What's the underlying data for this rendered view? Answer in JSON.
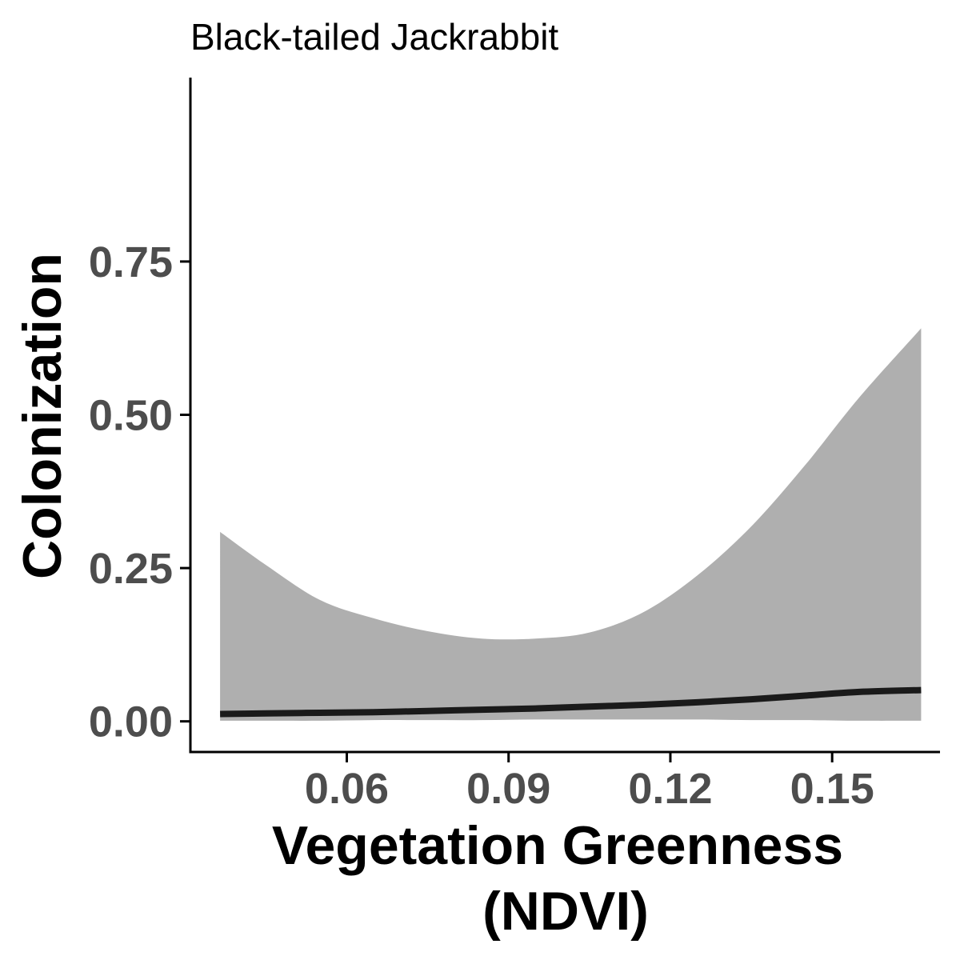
{
  "chart_data": {
    "type": "line",
    "title": "Black-tailed Jackrabbit",
    "xlabel_line1": "Vegetation Greenness",
    "xlabel_line2": "(NDVI)",
    "ylabel": "Colonization",
    "xlim": [
      0.031,
      0.17
    ],
    "ylim": [
      -0.05,
      1.05
    ],
    "x_ticks": [
      0.06,
      0.09,
      0.12,
      0.15
    ],
    "x_tick_labels": [
      "0.06",
      "0.09",
      "0.12",
      "0.15"
    ],
    "y_ticks": [
      0.0,
      0.25,
      0.5,
      0.75
    ],
    "y_tick_labels": [
      "0.00",
      "0.25",
      "0.50",
      "0.75"
    ],
    "grid": false,
    "legend": "none",
    "series": [
      {
        "x": [
          0.0365,
          0.045,
          0.055,
          0.065,
          0.075,
          0.085,
          0.095,
          0.105,
          0.115,
          0.125,
          0.135,
          0.145,
          0.155,
          0.1665
        ],
        "y": [
          0.012,
          0.013,
          0.014,
          0.015,
          0.017,
          0.019,
          0.021,
          0.024,
          0.027,
          0.031,
          0.036,
          0.042,
          0.048,
          0.051
        ],
        "lower": [
          0.001,
          0.001,
          0.001,
          0.002,
          0.002,
          0.002,
          0.003,
          0.003,
          0.003,
          0.003,
          0.002,
          0.002,
          0.001,
          0.001
        ],
        "upper": [
          0.309,
          0.255,
          0.198,
          0.168,
          0.147,
          0.135,
          0.135,
          0.145,
          0.178,
          0.238,
          0.318,
          0.418,
          0.528,
          0.641
        ]
      }
    ],
    "colors": {
      "line": "#1a1a1a",
      "ribbon": "#afafaf",
      "axis": "#000000",
      "tick_text": "#4d4d4d"
    }
  }
}
